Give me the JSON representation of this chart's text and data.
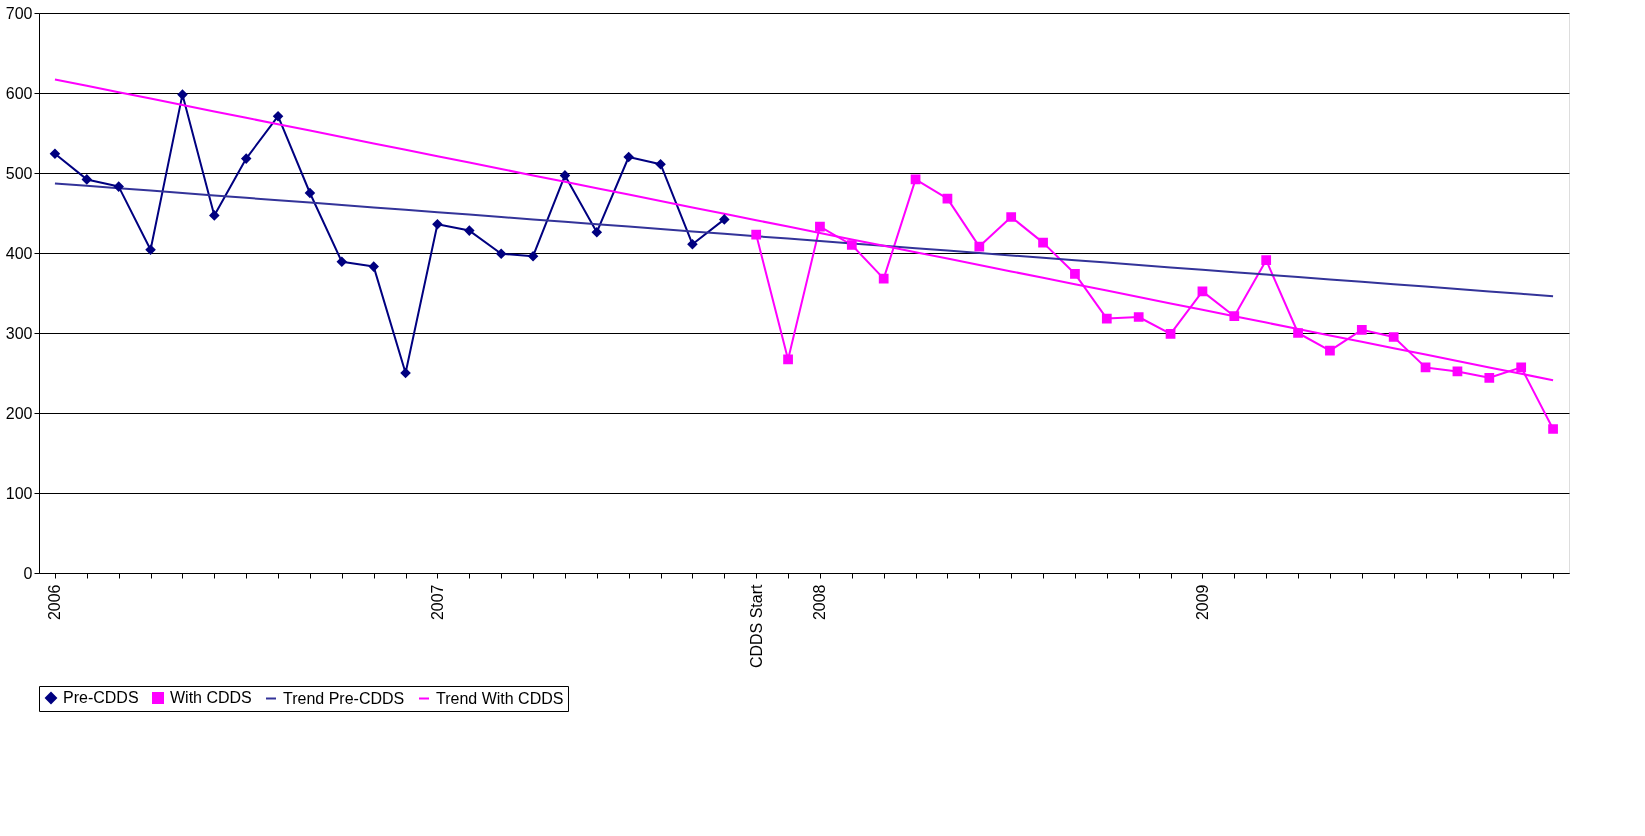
{
  "chart_data": {
    "type": "line",
    "categories": [
      "2006",
      null,
      null,
      null,
      null,
      null,
      null,
      null,
      null,
      null,
      null,
      null,
      "2007",
      null,
      null,
      null,
      null,
      null,
      null,
      null,
      null,
      null,
      "CDDS Start",
      null,
      "2008",
      null,
      null,
      null,
      null,
      null,
      null,
      null,
      null,
      null,
      null,
      null,
      "2009",
      null,
      null,
      null,
      null,
      null,
      null,
      null,
      null,
      null,
      null,
      null
    ],
    "series": [
      {
        "name": "Pre-CDDS",
        "color": "#000080",
        "marker": "diamond",
        "values": [
          524,
          492,
          483,
          404,
          598,
          447,
          518,
          571,
          475,
          389,
          383,
          250,
          436,
          428,
          399,
          396,
          497,
          426,
          520,
          511,
          411,
          442,
          null,
          null,
          null,
          null,
          null,
          null,
          null,
          null,
          null,
          null,
          null,
          null,
          null,
          null,
          null,
          null,
          null,
          null,
          null,
          null,
          null,
          null,
          null,
          null,
          null,
          null
        ]
      },
      {
        "name": "With CDDS",
        "color": "#ff00ff",
        "marker": "square",
        "values": [
          null,
          null,
          null,
          null,
          null,
          null,
          null,
          null,
          null,
          null,
          null,
          null,
          null,
          null,
          null,
          null,
          null,
          null,
          null,
          null,
          null,
          null,
          423,
          267,
          433,
          410,
          368,
          492,
          468,
          408,
          445,
          413,
          374,
          318,
          320,
          299,
          352,
          321,
          391,
          300,
          278,
          304,
          295,
          257,
          252,
          244,
          257,
          180
        ]
      },
      {
        "name": "Trend Pre-CDDS",
        "color": "#333399",
        "marker": "none",
        "values": [
          487,
          484,
          481,
          478,
          475,
          472,
          469,
          466,
          463,
          460,
          457,
          454,
          451,
          448,
          445,
          442,
          439,
          436,
          433,
          430,
          427,
          424,
          421,
          418,
          415,
          412,
          409,
          406,
          403,
          400,
          397,
          394,
          391,
          388,
          385,
          382,
          379,
          376,
          373,
          370,
          367,
          364,
          361,
          358,
          355,
          352,
          349,
          346
        ]
      },
      {
        "name": "Trend With CDDS",
        "color": "#ff00ff",
        "marker": "none",
        "values": [
          617,
          609,
          601,
          593,
          585,
          577,
          569,
          561,
          553,
          545,
          537,
          529,
          521,
          513,
          505,
          497,
          489,
          481,
          473,
          465,
          457,
          449,
          441,
          433,
          425,
          417,
          409,
          401,
          393,
          385,
          377,
          369,
          361,
          353,
          345,
          337,
          329,
          321,
          313,
          305,
          297,
          289,
          281,
          273,
          265,
          257,
          249,
          241
        ]
      }
    ],
    "ylim": [
      0,
      700
    ],
    "yticks": [
      0,
      100,
      200,
      300,
      400,
      500,
      600,
      700
    ],
    "grid": "y",
    "legend": "bottom"
  }
}
